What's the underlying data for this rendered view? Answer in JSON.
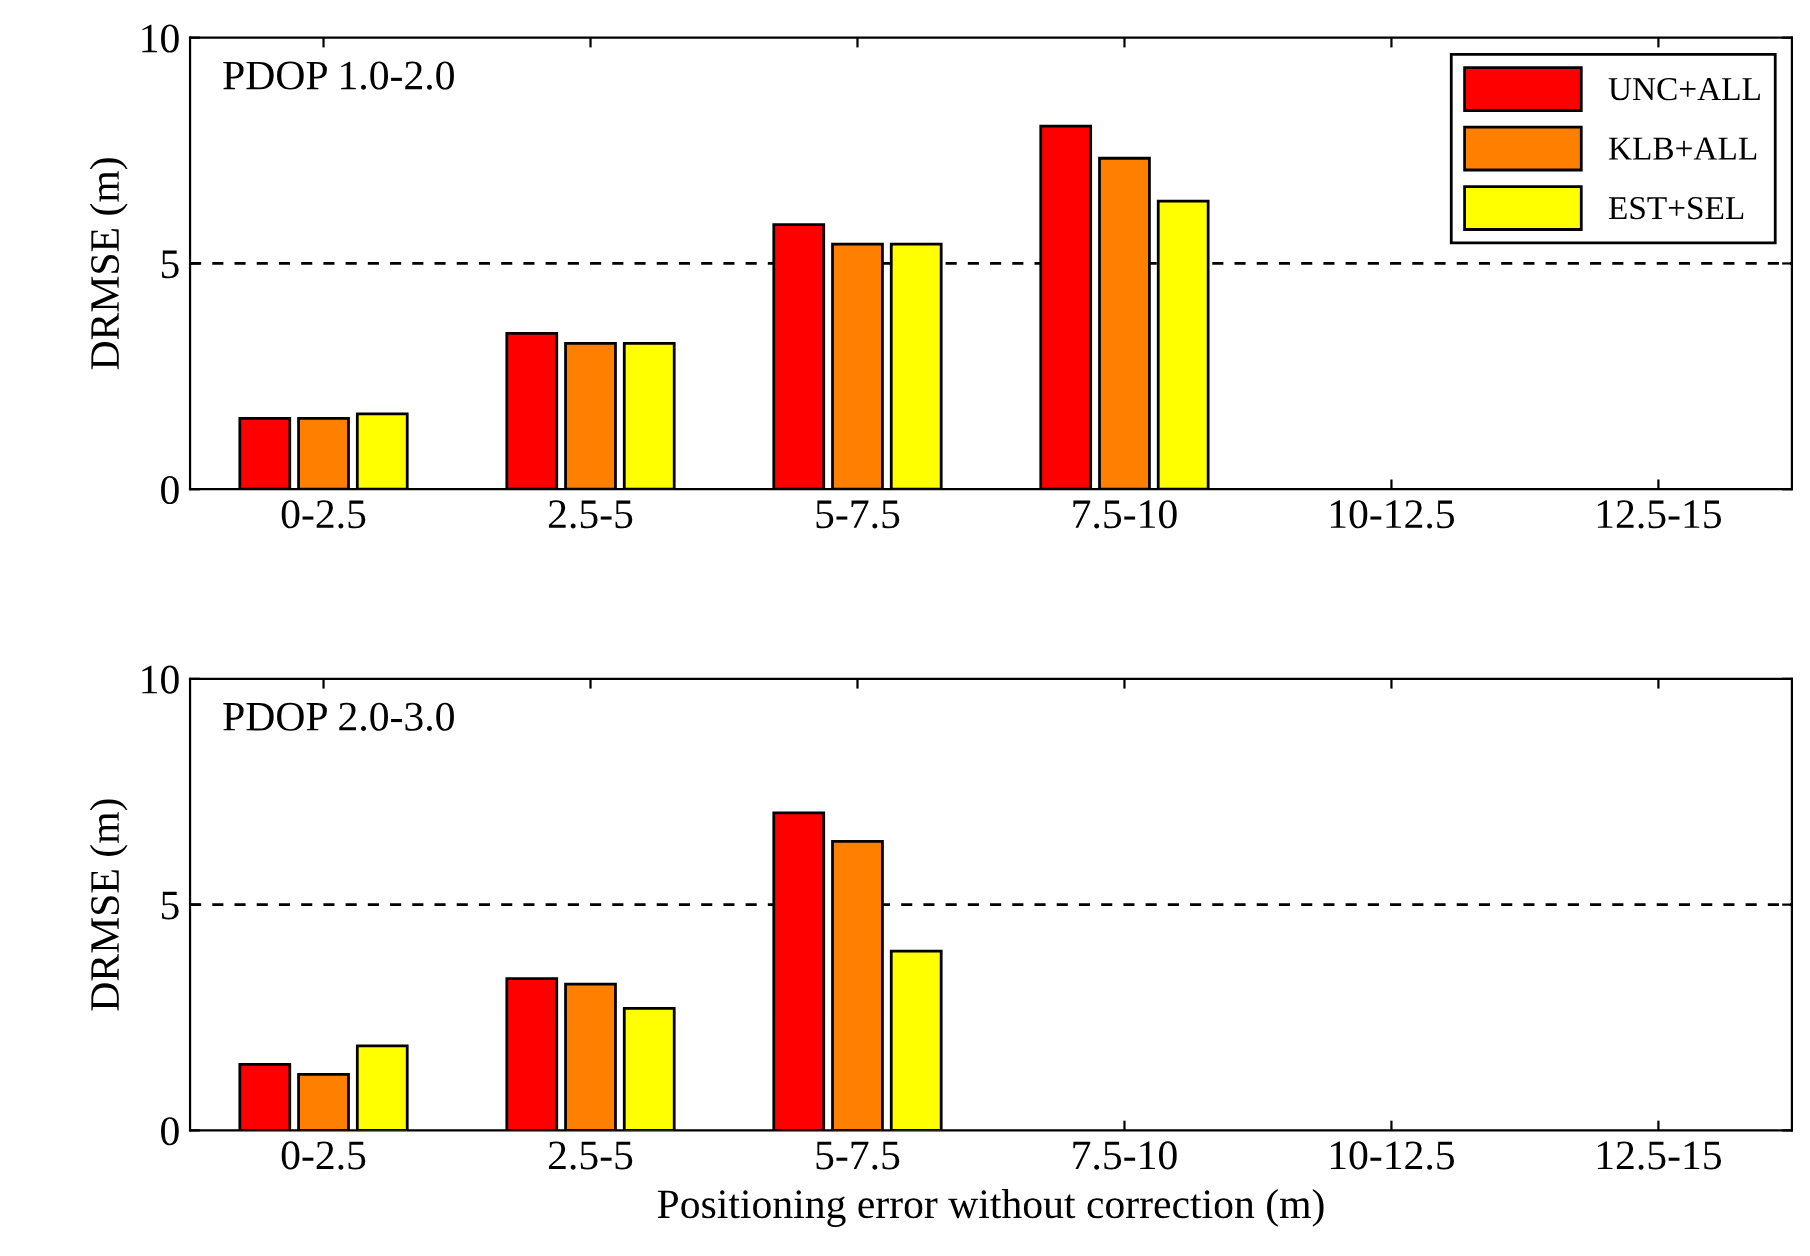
{
  "chart_data": [
    {
      "type": "bar",
      "categories": [
        "0-2.5",
        "2.5-5",
        "5-7.5",
        "7.5-10",
        "10-12.5",
        "12.5-15"
      ],
      "ylabel": "DRMSE (m)",
      "ylim": [
        0,
        10
      ],
      "yticks": [
        0,
        5,
        10
      ],
      "annotations": [
        "PDOP 1.0-2.0"
      ],
      "legend": "top right",
      "grid": false,
      "ref_lines": [
        {
          "axis": "y",
          "value": 5,
          "line_style": "dashed",
          "color": "#000000"
        }
      ],
      "series": [
        {
          "name": "UNC+ALL",
          "color": "#ff0000",
          "values": [
            1.57,
            3.45,
            5.86,
            8.04,
            null,
            null
          ]
        },
        {
          "name": "KLB+ALL",
          "color": "#ff8000",
          "values": [
            1.57,
            3.23,
            5.43,
            7.33,
            null,
            null
          ]
        },
        {
          "name": "EST+SEL",
          "color": "#ffff00",
          "values": [
            1.67,
            3.23,
            5.43,
            6.38,
            null,
            null
          ]
        }
      ]
    },
    {
      "type": "bar",
      "categories": [
        "0-2.5",
        "2.5-5",
        "5-7.5",
        "7.5-10",
        "10-12.5",
        "12.5-15"
      ],
      "ylabel": "DRMSE (m)",
      "xlabel": "Positioning error without correction (m)",
      "ylim": [
        0,
        10
      ],
      "yticks": [
        0,
        5,
        10
      ],
      "annotations": [
        "PDOP 2.0-3.0"
      ],
      "grid": false,
      "ref_lines": [
        {
          "axis": "y",
          "value": 5,
          "line_style": "dashed",
          "color": "#000000"
        }
      ],
      "series": [
        {
          "color": "#ff0000",
          "values": [
            1.46,
            3.36,
            7.03,
            null,
            null,
            null
          ]
        },
        {
          "color": "#ff8000",
          "values": [
            1.24,
            3.24,
            6.4,
            null,
            null,
            null
          ]
        },
        {
          "color": "#ffff00",
          "values": [
            1.87,
            2.7,
            3.97,
            null,
            null,
            null
          ]
        }
      ]
    }
  ]
}
